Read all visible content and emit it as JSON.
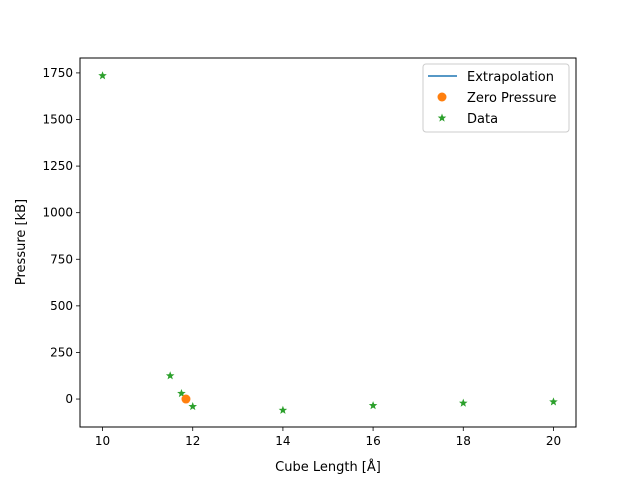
{
  "chart_data": {
    "type": "scatter",
    "title": "",
    "xlabel": "Cube Length [Å]",
    "ylabel": "Pressure [kB]",
    "xlim": [
      9.5,
      20.5
    ],
    "ylim": [
      -150,
      1830
    ],
    "x_ticks": [
      10,
      12,
      14,
      16,
      18,
      20
    ],
    "y_ticks": [
      0,
      250,
      500,
      750,
      1000,
      1250,
      1500,
      1750
    ],
    "grid": false,
    "legend_position": "upper right",
    "series": [
      {
        "name": "Extrapolation",
        "kind": "line",
        "color": "#1f77b4",
        "x": [],
        "y": []
      },
      {
        "name": "Zero Pressure",
        "kind": "marker-circle",
        "color": "#ff7f0e",
        "x": [
          11.85
        ],
        "y": [
          0
        ]
      },
      {
        "name": "Data",
        "kind": "marker-star",
        "color": "#2ca02c",
        "x": [
          10,
          11.5,
          11.75,
          12,
          14,
          16,
          18,
          20
        ],
        "y": [
          1735,
          125,
          30,
          -40,
          -60,
          -35,
          -22,
          -15
        ]
      }
    ]
  }
}
